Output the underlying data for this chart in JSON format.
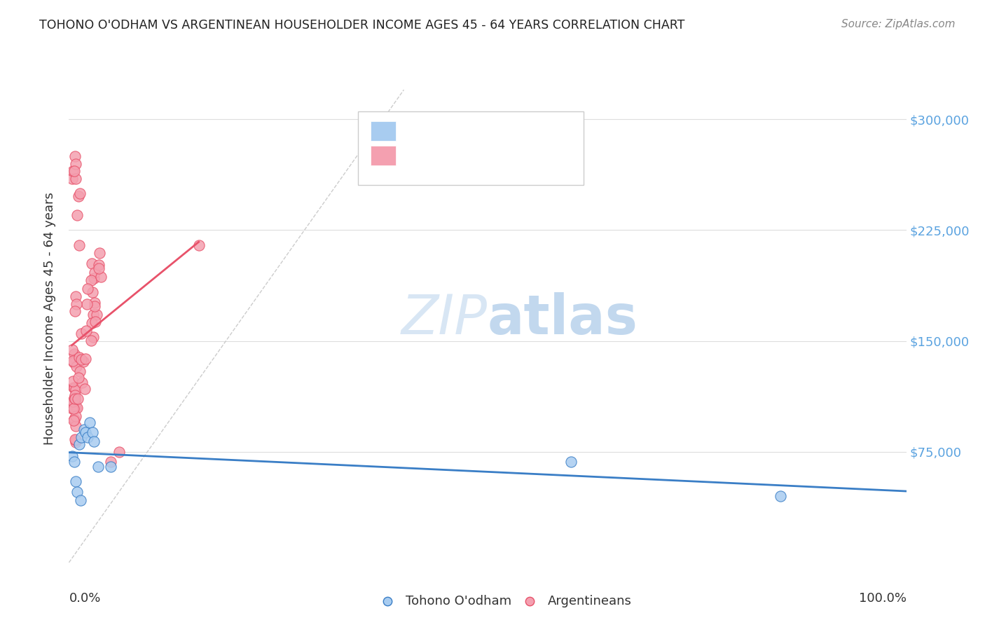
{
  "title": "TOHONO O'ODHAM VS ARGENTINEAN HOUSEHOLDER INCOME AGES 45 - 64 YEARS CORRELATION CHART",
  "source": "Source: ZipAtlas.com",
  "ylabel": "Householder Income Ages 45 - 64 years",
  "ytick_labels": [
    "$75,000",
    "$150,000",
    "$225,000",
    "$300,000"
  ],
  "ytick_values": [
    75000,
    150000,
    225000,
    300000
  ],
  "xlim": [
    0.0,
    1.0
  ],
  "ylim": [
    0,
    330000
  ],
  "blue_color": "#A8CCF0",
  "pink_color": "#F4A0B0",
  "blue_line_color": "#3A7EC6",
  "pink_line_color": "#E8526A",
  "diagonal_color": "#CCCCCC",
  "tohono_x": [
    0.004,
    0.006,
    0.008,
    0.01,
    0.012,
    0.015,
    0.018,
    0.02,
    0.022,
    0.025,
    0.028,
    0.03,
    0.035,
    0.014,
    0.05,
    0.6,
    0.85
  ],
  "tohono_y": [
    72000,
    68000,
    55000,
    48000,
    80000,
    85000,
    90000,
    88000,
    85000,
    95000,
    88000,
    82000,
    65000,
    42000,
    65000,
    68000,
    45000
  ],
  "arg_c1_seed": 123,
  "watermark_zip": "ZIP",
  "watermark_atlas": "atlas"
}
